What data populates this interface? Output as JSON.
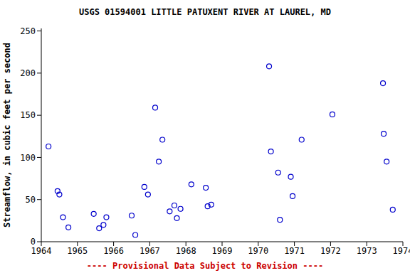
{
  "chart_data": {
    "type": "scatter",
    "title": "USGS 01594001 LITTLE PATUXENT RIVER AT LAUREL, MD",
    "y_label": "Streamflow, in cubic feet per second",
    "footnote": "---- Provisional Data Subject to Revision ----",
    "x": [
      1964.2,
      1964.45,
      1964.5,
      1964.6,
      1964.75,
      1965.45,
      1965.6,
      1965.72,
      1965.8,
      1966.5,
      1966.6,
      1966.85,
      1966.95,
      1967.15,
      1967.25,
      1967.35,
      1967.55,
      1967.68,
      1967.75,
      1967.85,
      1968.15,
      1968.55,
      1968.6,
      1968.7,
      1970.3,
      1970.35,
      1970.55,
      1970.6,
      1970.9,
      1970.95,
      1971.2,
      1972.05,
      1973.45,
      1973.47,
      1973.55,
      1973.72
    ],
    "values": [
      113,
      60,
      56,
      29,
      17,
      33,
      16,
      20,
      29,
      31,
      8,
      65,
      56,
      159,
      95,
      121,
      36,
      43,
      28,
      39,
      68,
      64,
      42,
      44,
      208,
      107,
      82,
      26,
      77,
      54,
      121,
      151,
      188,
      128,
      95,
      38
    ],
    "color": "#0000cc",
    "marker": "circle_open",
    "xlim": [
      1964,
      1974
    ],
    "xticks": [
      1964,
      1965,
      1966,
      1967,
      1968,
      1969,
      1970,
      1971,
      1972,
      1973,
      1974
    ],
    "ylim": [
      0,
      253
    ],
    "yticks": [
      0,
      50,
      100,
      150,
      200,
      250
    ],
    "grid": false
  }
}
